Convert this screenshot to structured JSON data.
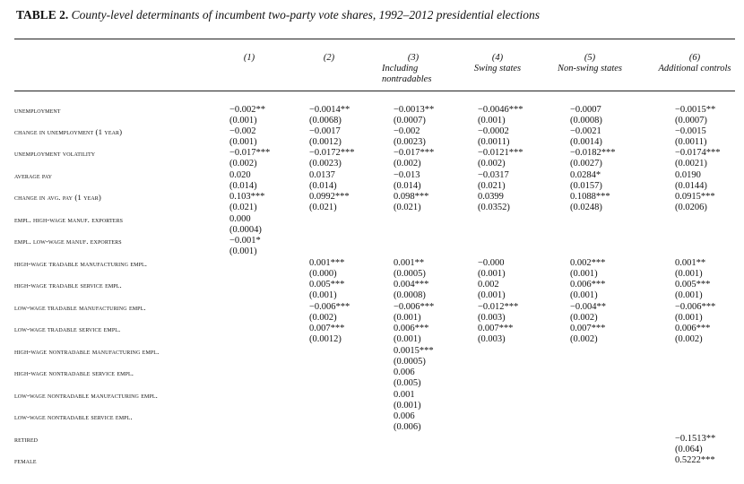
{
  "table": {
    "label": "TABLE 2.",
    "caption": "County-level determinants of incumbent two-party vote shares, 1992–2012 presidential elections",
    "columns": [
      {
        "num": "(1)",
        "name": ""
      },
      {
        "num": "(2)",
        "name": ""
      },
      {
        "num": "(3)",
        "name": "Including nontradables"
      },
      {
        "num": "(4)",
        "name": "Swing states"
      },
      {
        "num": "(5)",
        "name": "Non-swing states"
      },
      {
        "num": "(6)",
        "name": "Additional controls"
      }
    ],
    "rows": [
      {
        "label": "UNEMPLOYMENT",
        "cells": [
          [
            "−0.002**",
            "(0.001)"
          ],
          [
            "−0.0014**",
            "(0.0068)"
          ],
          [
            "−0.0013**",
            "(0.0007)"
          ],
          [
            "−0.0046***",
            "(0.001)"
          ],
          [
            "−0.0007",
            "(0.0008)"
          ],
          [
            "−0.0015**",
            "(0.0007)"
          ]
        ]
      },
      {
        "label": "CHANGE IN UNEMPLOYMENT (1 YEAR)",
        "cells": [
          [
            "−0.002",
            "(0.001)"
          ],
          [
            "−0.0017",
            "(0.0012)"
          ],
          [
            "−0.002",
            "(0.0023)"
          ],
          [
            "−0.0002",
            "(0.0011)"
          ],
          [
            "−0.0021",
            "(0.0014)"
          ],
          [
            "−0.0015",
            "(0.0011)"
          ]
        ]
      },
      {
        "label": "UNEMPLOYMENT VOLATILITY",
        "cells": [
          [
            "−0.017***",
            "(0.002)"
          ],
          [
            "−0.0172***",
            "(0.0023)"
          ],
          [
            "−0.017***",
            "(0.002)"
          ],
          [
            "−0.0121***",
            "(0.002)"
          ],
          [
            "−0.0182***",
            "(0.0027)"
          ],
          [
            "−0.0174***",
            "(0.0021)"
          ]
        ]
      },
      {
        "label": "AVERAGE PAY",
        "cells": [
          [
            "0.020",
            "(0.014)"
          ],
          [
            "0.0137",
            "(0.014)"
          ],
          [
            "−0.013",
            "(0.014)"
          ],
          [
            "−0.0317",
            "(0.021)"
          ],
          [
            "0.0284*",
            "(0.0157)"
          ],
          [
            "0.0190",
            "(0.0144)"
          ]
        ]
      },
      {
        "label": "CHANGE IN AVG. PAY (1 YEAR)",
        "cells": [
          [
            "0.103***",
            "(0.021)"
          ],
          [
            "0.0992***",
            "(0.021)"
          ],
          [
            "0.098***",
            "(0.021)"
          ],
          [
            "0.0399",
            "(0.0352)"
          ],
          [
            "0.1088***",
            "(0.0248)"
          ],
          [
            "0.0915***",
            "(0.0206)"
          ]
        ]
      },
      {
        "label": "EMPL. HIGH-WAGE MANUF. EXPORTERS",
        "cells": [
          [
            "0.000",
            "(0.0004)"
          ],
          null,
          null,
          null,
          null,
          null
        ]
      },
      {
        "label": "EMPL. LOW-WAGE MANUF. EXPORTERS",
        "cells": [
          [
            "−0.001*",
            "(0.001)"
          ],
          null,
          null,
          null,
          null,
          null
        ]
      },
      {
        "label": "HIGH-WAGE TRADABLE MANUFACTURING EMPL.",
        "cells": [
          null,
          [
            "0.001***",
            "(0.000)"
          ],
          [
            "0.001**",
            "(0.0005)"
          ],
          [
            "−0.000",
            "(0.001)"
          ],
          [
            "0.002***",
            "(0.001)"
          ],
          [
            "0.001**",
            "(0.001)"
          ]
        ]
      },
      {
        "label": "HIGH-WAGE TRADABLE SERVICE EMPL.",
        "cells": [
          null,
          [
            "0.005***",
            "(0.001)"
          ],
          [
            "0.004***",
            "(0.0008)"
          ],
          [
            "0.002",
            "(0.001)"
          ],
          [
            "0.006***",
            "(0.001)"
          ],
          [
            "0.005***",
            "(0.001)"
          ]
        ]
      },
      {
        "label": "LOW-WAGE TRADABLE MANUFACTURING EMPL.",
        "cells": [
          null,
          [
            "−0.006***",
            "(0.002)"
          ],
          [
            "−0.006***",
            "(0.001)"
          ],
          [
            "−0.012***",
            "(0.003)"
          ],
          [
            "−0.004**",
            "(0.002)"
          ],
          [
            "−0.006***",
            "(0.001)"
          ]
        ]
      },
      {
        "label": "LOW-WAGE TRADABLE SERVICE EMPL.",
        "cells": [
          null,
          [
            "0.007***",
            "(0.0012)"
          ],
          [
            "0.006***",
            "(0.001)"
          ],
          [
            "0.007***",
            "(0.003)"
          ],
          [
            "0.007***",
            "(0.002)"
          ],
          [
            "0.006***",
            "(0.002)"
          ]
        ]
      },
      {
        "label": "HIGH-WAGE NONTRADABLE MANUFACTURING EMPL.",
        "cells": [
          null,
          null,
          [
            "0.0015***",
            "(0.0005)"
          ],
          null,
          null,
          null
        ]
      },
      {
        "label": "HIGH-WAGE NONTRADABLE Service Empl.",
        "cells": [
          null,
          null,
          [
            "0.006",
            "(0.005)"
          ],
          null,
          null,
          null
        ]
      },
      {
        "label": "LOW-WAGE NONTRADABLE MANUFACTURING EMPL.",
        "cells": [
          null,
          null,
          [
            "0.001",
            "(0.001)"
          ],
          null,
          null,
          null
        ]
      },
      {
        "label": "LOW-WAGE NONTRADABLE SERVICE EMPL.",
        "cells": [
          null,
          null,
          [
            "0.006",
            "(0.006)"
          ],
          null,
          null,
          null
        ]
      },
      {
        "label": "RETIRED",
        "cells": [
          null,
          null,
          null,
          null,
          null,
          [
            "−0.1513**",
            "(0.064)"
          ]
        ]
      },
      {
        "label": "FEMALE",
        "cells": [
          null,
          null,
          null,
          null,
          null,
          [
            "0.5222***",
            ""
          ]
        ]
      }
    ]
  }
}
